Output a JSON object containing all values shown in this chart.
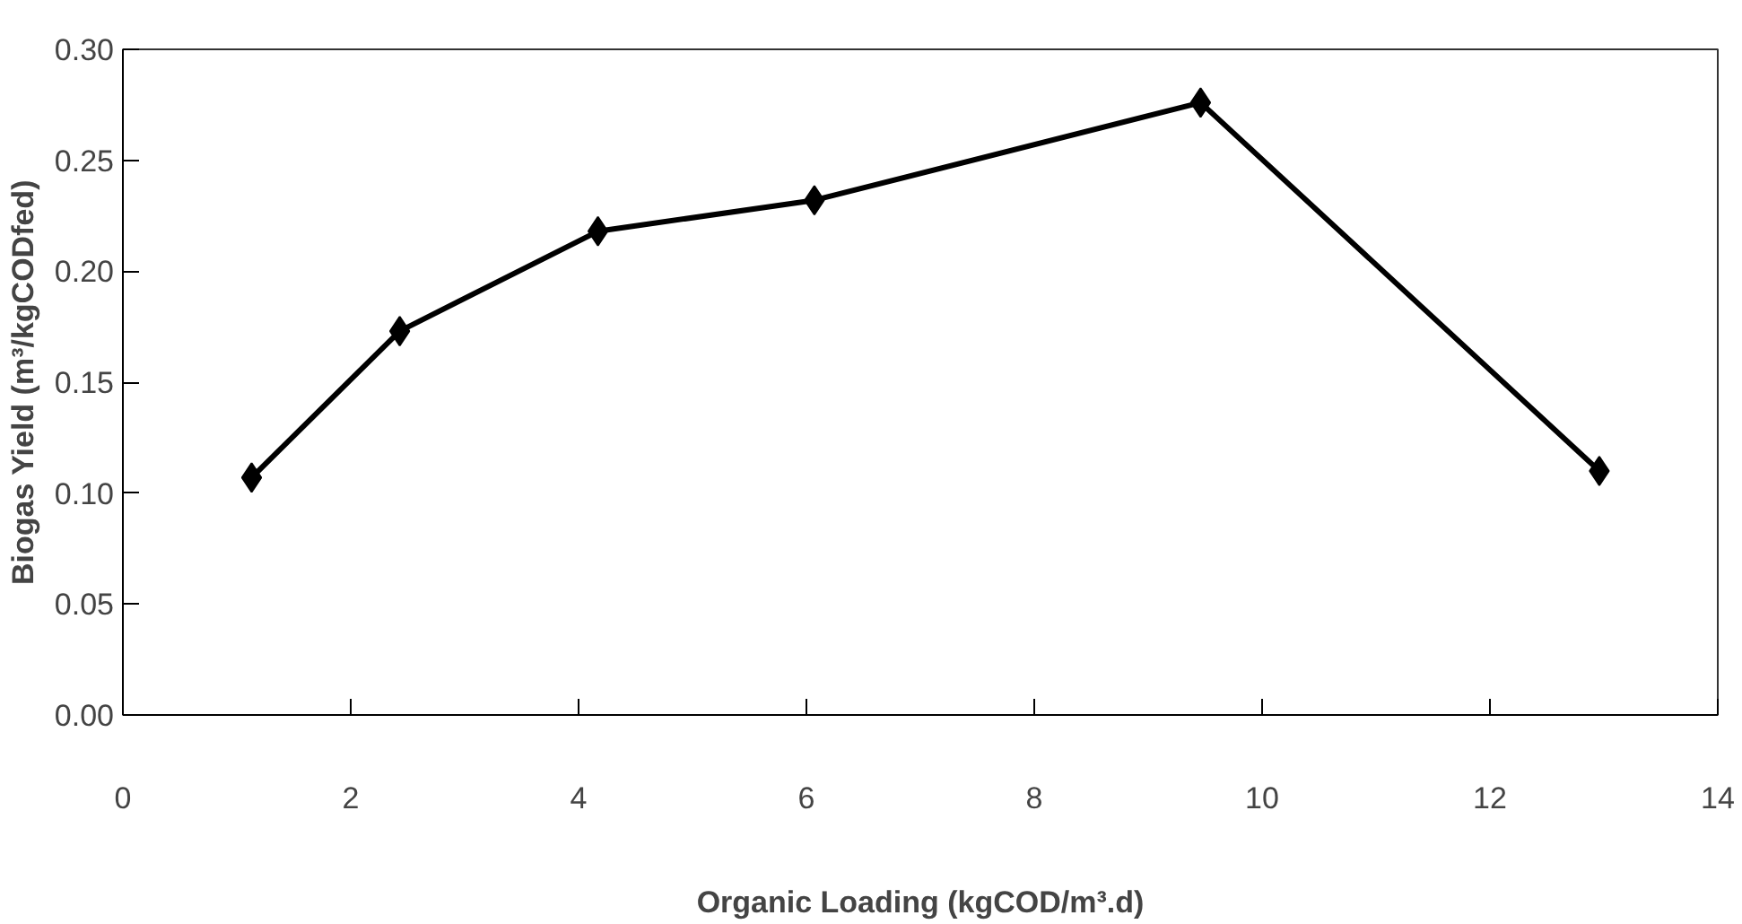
{
  "chart_data": {
    "type": "line",
    "xlabel": "Organic Loading (kgCOD/m³.d)",
    "ylabel": "Biogas Yield (m³/kgCODfed)",
    "x": [
      1.13,
      2.43,
      4.17,
      6.07,
      9.46,
      12.96
    ],
    "series": [
      {
        "color": "#000000",
        "values": [
          0.107,
          0.173,
          0.218,
          0.232,
          0.276,
          0.11
        ]
      }
    ],
    "xlim": [
      0,
      14
    ],
    "ylim": [
      0,
      0.3
    ],
    "xticks": [
      0,
      2,
      4,
      6,
      8,
      10,
      12,
      14
    ],
    "yticks": [
      {
        "value": 0,
        "label": "0.00"
      },
      {
        "value": 0.05,
        "label": "0.05"
      },
      {
        "value": 0.1,
        "label": "0.10"
      },
      {
        "value": 0.15,
        "label": "0.15"
      },
      {
        "value": 0.2,
        "label": "0.20"
      },
      {
        "value": 0.25,
        "label": "0.25"
      },
      {
        "value": 0.3,
        "label": "0.30"
      }
    ],
    "marker": "diamond",
    "grid": false
  }
}
